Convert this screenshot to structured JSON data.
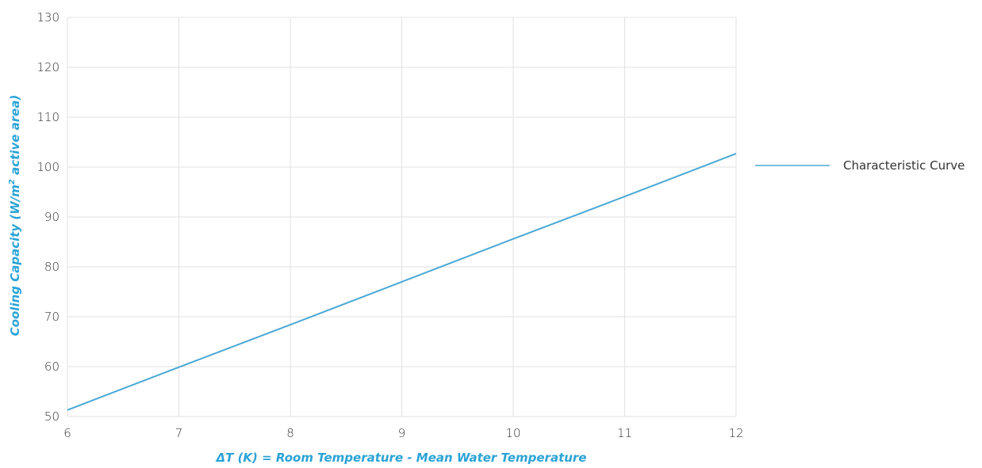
{
  "chart_data": {
    "type": "line",
    "title": "",
    "xlabel": "ΔT (K) = Room Temperature - Mean Water Temperature",
    "ylabel_main": "Cooling Capacity (W/m",
    "ylabel_sup": "2",
    "ylabel_rest": " active area)",
    "x_ticks": [
      6,
      7,
      8,
      9,
      10,
      11,
      12
    ],
    "y_ticks": [
      50,
      60,
      70,
      80,
      90,
      100,
      110,
      120,
      130
    ],
    "xlim": [
      6,
      12
    ],
    "ylim": [
      50,
      130
    ],
    "grid": true,
    "legend_position": "right",
    "series": [
      {
        "name": "Characteristic Curve",
        "x": [
          6,
          7,
          8,
          9,
          10,
          11,
          12
        ],
        "y": [
          51.3,
          59.9,
          68.4,
          77.0,
          85.6,
          94.1,
          102.7
        ]
      }
    ]
  },
  "colors": {
    "series": "#4aa8d4",
    "axis_title": "#2aa3d6",
    "grid": "#e2e2e2",
    "tick_text": "#333333"
  }
}
